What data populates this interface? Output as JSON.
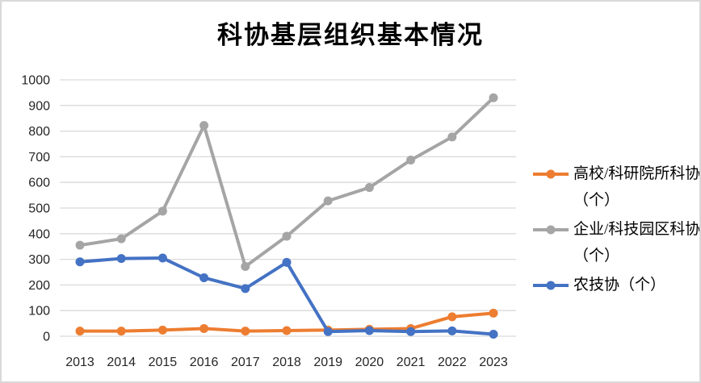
{
  "chart_data": {
    "type": "line",
    "title": "科协基层组织基本情况",
    "categories": [
      "2013",
      "2014",
      "2015",
      "2016",
      "2017",
      "2018",
      "2019",
      "2020",
      "2021",
      "2022",
      "2023"
    ],
    "series": [
      {
        "name": "高校/科研院所科协（个）",
        "color": "#ED7D31",
        "values": [
          20,
          20,
          24,
          30,
          20,
          22,
          24,
          27,
          30,
          76,
          90
        ]
      },
      {
        "name": "企业/科技园区科协（个）",
        "color": "#A5A5A5",
        "values": [
          355,
          380,
          488,
          822,
          272,
          390,
          528,
          580,
          687,
          777,
          930
        ]
      },
      {
        "name": "农技协（个）",
        "color": "#4472C4",
        "values": [
          290,
          303,
          305,
          228,
          186,
          288,
          18,
          22,
          18,
          21,
          8
        ]
      }
    ],
    "xlabel": "",
    "ylabel": "",
    "ylim": [
      0,
      1000
    ],
    "ytick_step": 100,
    "grid": true,
    "legend_position": "right",
    "gridline_color": "#D9D9D9",
    "axis_text_color": "#262626",
    "frame_border_color": "#D9D9D9"
  }
}
